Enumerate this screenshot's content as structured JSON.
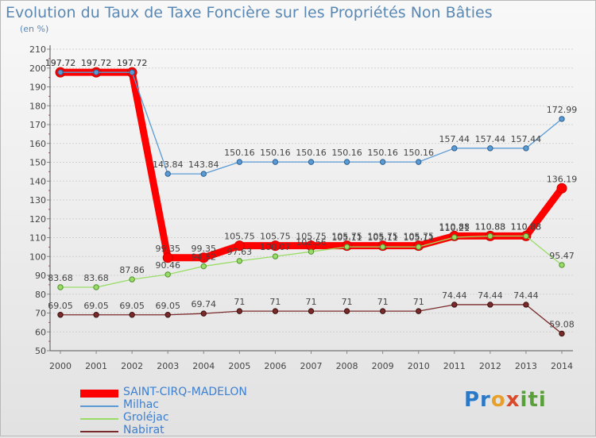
{
  "chart_data": {
    "type": "line",
    "title": "Evolution du Taux de Taxe Foncière sur les Propriétés Non Bâties",
    "subtitle": "(en %)",
    "xlabel": "",
    "ylabel": "",
    "ylim": [
      50,
      210
    ],
    "yticks": [
      50,
      60,
      70,
      80,
      90,
      100,
      110,
      120,
      130,
      140,
      150,
      160,
      170,
      180,
      190,
      200,
      210
    ],
    "x": [
      "2000",
      "2001",
      "2002",
      "2003",
      "2004",
      "2005",
      "2006",
      "2007",
      "2008",
      "2009",
      "2010",
      "2011",
      "2012",
      "2013",
      "2014"
    ],
    "series": [
      {
        "name": "SAINT-CIRQ-MADELON",
        "color": "#ff0000",
        "values": [
          197.72,
          197.72,
          197.72,
          99.35,
          99.35,
          105.75,
          105.75,
          105.75,
          105.75,
          105.75,
          105.75,
          110.88,
          110.88,
          110.88,
          136.19
        ],
        "labels": [
          "197.72",
          "197.72",
          "197.72",
          "99.35",
          "99.35",
          "105.75",
          "105.75",
          "105.75",
          "105.75",
          "105.75",
          "105.75",
          "110.88",
          "110.88",
          "110.88",
          "136.19"
        ]
      },
      {
        "name": "Milhac",
        "color": "#5b9bd5",
        "values": [
          197.72,
          197.72,
          197.72,
          143.84,
          143.84,
          150.16,
          150.16,
          150.16,
          150.16,
          150.16,
          150.16,
          157.44,
          157.44,
          157.44,
          172.99
        ],
        "labels": [
          "197.72",
          "197.72",
          "197.72",
          "143.84",
          "143.84",
          "150.16",
          "150.16",
          "150.16",
          "150.16",
          "150.16",
          "150.16",
          "157.44",
          "157.44",
          "157.44",
          "172.99"
        ]
      },
      {
        "name": "Groléjac",
        "color": "#99dd66",
        "values": [
          83.68,
          83.68,
          87.86,
          90.46,
          94.82,
          97.63,
          100.07,
          102.56,
          105.11,
          105.11,
          105.11,
          110.21,
          110.83,
          110.83,
          95.47
        ],
        "labels": [
          "83.68",
          "83.68",
          "87.86",
          "90.46",
          "94.82",
          "97.63",
          "100.07",
          "102.56",
          "105.11",
          "105.11",
          "105.11",
          "110.21",
          "110.83",
          "110.83",
          "95.47"
        ]
      },
      {
        "name": "Nabirat",
        "color": "#7a2a2a",
        "values": [
          69.05,
          69.05,
          69.05,
          69.05,
          69.74,
          71,
          71,
          71,
          71,
          71,
          71,
          74.44,
          74.44,
          74.44,
          59.08
        ],
        "labels": [
          "69.05",
          "69.05",
          "69.05",
          "69.05",
          "69.74",
          "71",
          "71",
          "71",
          "71",
          "71",
          "71",
          "74.44",
          "74.44",
          "74.44",
          "59.08"
        ]
      }
    ],
    "legend": [
      "SAINT-CIRQ-MADELON",
      "Milhac",
      "Groléjac",
      "Nabirat"
    ]
  },
  "logo": {
    "letters": [
      "Pr",
      "o",
      "x",
      "iti"
    ]
  }
}
